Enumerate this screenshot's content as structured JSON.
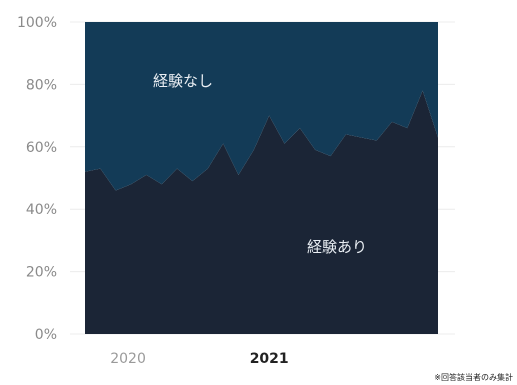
{
  "chart_data": {
    "type": "area",
    "stacked": true,
    "normalized": true,
    "y_ticks": [
      "100%",
      "80%",
      "60%",
      "40%",
      "20%",
      "0%"
    ],
    "ylim": [
      0,
      100
    ],
    "x_ticks": [
      {
        "label": "2020",
        "index": 3,
        "emphasis": false
      },
      {
        "label": "2021",
        "index": 12,
        "emphasis": true
      }
    ],
    "grid": true,
    "series": [
      {
        "name": "経験あり",
        "color": "#1b2536",
        "values": [
          52,
          53,
          46,
          48,
          51,
          48,
          53,
          49,
          53,
          61,
          51,
          59,
          70,
          61,
          66,
          59,
          57,
          64,
          63,
          62,
          68,
          66,
          78,
          63
        ]
      },
      {
        "name": "経験なし",
        "color": "#133b57",
        "values": [
          48,
          47,
          54,
          52,
          49,
          52,
          47,
          51,
          47,
          39,
          49,
          41,
          30,
          39,
          34,
          41,
          43,
          36,
          37,
          38,
          32,
          34,
          22,
          37
        ]
      }
    ]
  },
  "footnote": "※回答該当者のみ集計"
}
